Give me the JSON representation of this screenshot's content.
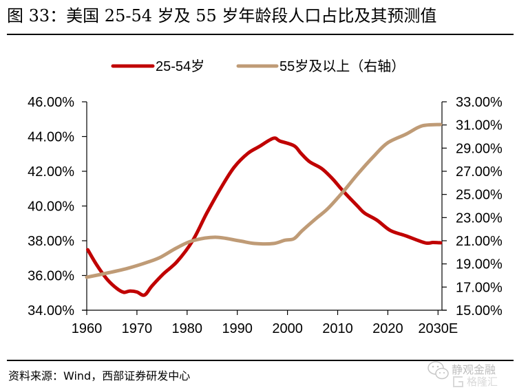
{
  "header": {
    "title": "图 33：美国 25-54 岁及 55 岁年龄段人口占比及其预测值"
  },
  "footer": {
    "source": "资料来源：Wind，西部证券研发中心",
    "watermark_text": "静观金融",
    "watermark_logo_text": "格隆汇",
    "watermark_icon": "wechat-icon"
  },
  "chart_data": {
    "type": "line",
    "title": "美国 25-54 岁及 55 岁年龄段人口占比及其预测值",
    "xlabel": "",
    "ylabel_left": "",
    "ylabel_right": "",
    "grid": false,
    "legend_position": "top",
    "x_ticks": [
      1960,
      1970,
      1980,
      1990,
      2000,
      2010,
      2020,
      2030
    ],
    "x_tick_labels": [
      "1960",
      "1970",
      "1980",
      "1990",
      "2000",
      "2010",
      "2020",
      "2030E"
    ],
    "xlim": [
      1960,
      2030.8
    ],
    "y_left": {
      "lim": [
        34,
        46
      ],
      "ticks": [
        34,
        36,
        38,
        40,
        42,
        44,
        46
      ],
      "tick_labels": [
        "34.00%",
        "36.00%",
        "38.00%",
        "40.00%",
        "42.00%",
        "44.00%",
        "46.00%"
      ]
    },
    "y_right": {
      "lim": [
        15,
        33
      ],
      "ticks": [
        15,
        17,
        19,
        21,
        23,
        25,
        27,
        29,
        31,
        33
      ],
      "tick_labels": [
        "15.00%",
        "17.00%",
        "19.00%",
        "21.00%",
        "23.00%",
        "25.00%",
        "27.00%",
        "29.00%",
        "31.00%",
        "33.00%"
      ]
    },
    "series": [
      {
        "name": "25-54岁",
        "axis": "left",
        "color": "#C00000",
        "x": [
          1960.2,
          1962,
          1964,
          1966,
          1967.4,
          1968.5,
          1970,
          1971.5,
          1973,
          1975.3,
          1978,
          1981.1,
          1983.9,
          1987,
          1989.4,
          1992.1,
          1994.4,
          1997.2,
          1998.5,
          2001.3,
          2002.7,
          2004.4,
          2006.8,
          2009,
          2011,
          2014,
          2015.4,
          2017.8,
          2020.5,
          2023.6,
          2027.4,
          2029,
          2030.5
        ],
        "values": [
          37.48,
          36.6,
          35.8,
          35.25,
          35.03,
          35.1,
          35.05,
          34.87,
          35.4,
          36.1,
          36.8,
          38.0,
          39.58,
          41.17,
          42.24,
          43.03,
          43.43,
          43.9,
          43.74,
          43.47,
          43.03,
          42.55,
          42.16,
          41.56,
          40.89,
          39.98,
          39.58,
          39.19,
          38.59,
          38.28,
          37.88,
          37.9,
          37.88
        ]
      },
      {
        "name": "55岁及以上（右轴）",
        "axis": "right",
        "color": "#BF9B76",
        "x": [
          1960,
          1963.4,
          1968,
          1972.5,
          1974.8,
          1978,
          1981.1,
          1985.6,
          1990.3,
          1993.5,
          1997.2,
          1999.5,
          2001.3,
          2003,
          2005.8,
          2008.1,
          2011.3,
          2014,
          2017.2,
          2019.9,
          2023.6,
          2026.8,
          2030.5
        ],
        "values": [
          17.85,
          18.15,
          18.6,
          19.2,
          19.6,
          20.4,
          21.0,
          21.3,
          21.0,
          20.76,
          20.76,
          21.05,
          21.18,
          21.9,
          22.96,
          23.8,
          25.34,
          26.76,
          28.3,
          29.44,
          30.2,
          30.92,
          31.04
        ]
      }
    ]
  }
}
